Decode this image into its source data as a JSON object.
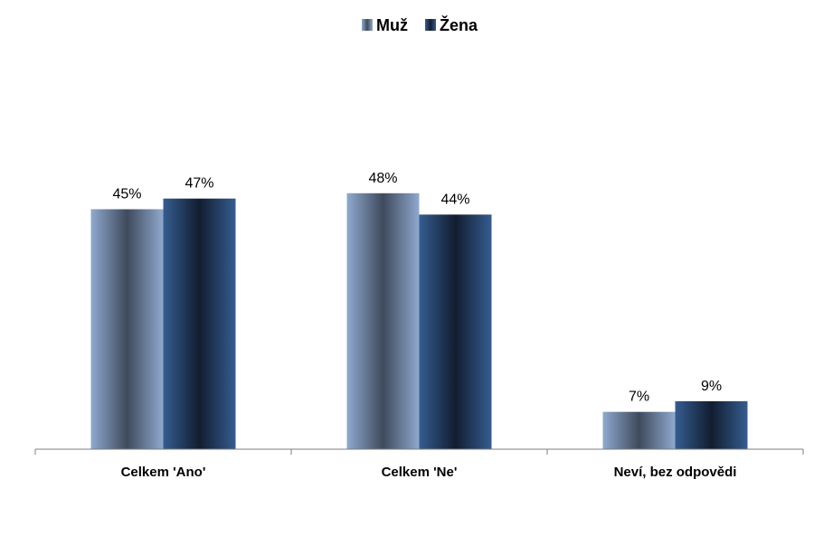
{
  "chart_data": {
    "type": "bar",
    "categories": [
      "Celkem 'Ano'",
      "Celkem 'Ne'",
      "Neví, bez odpovědi"
    ],
    "series": [
      {
        "name": "Muž",
        "values": [
          45,
          48,
          7
        ],
        "labels": [
          "45%",
          "48%",
          "7%"
        ],
        "color": "#8fa9cf",
        "color_dark": "#3f4a5c"
      },
      {
        "name": "Žena",
        "values": [
          47,
          44,
          9
        ],
        "labels": [
          "47%",
          "44%",
          "9%"
        ],
        "color": "#355d90",
        "color_dark": "#121d30"
      }
    ],
    "ylim": [
      0,
      80
    ],
    "grid": false,
    "legend_position": "top-center"
  }
}
